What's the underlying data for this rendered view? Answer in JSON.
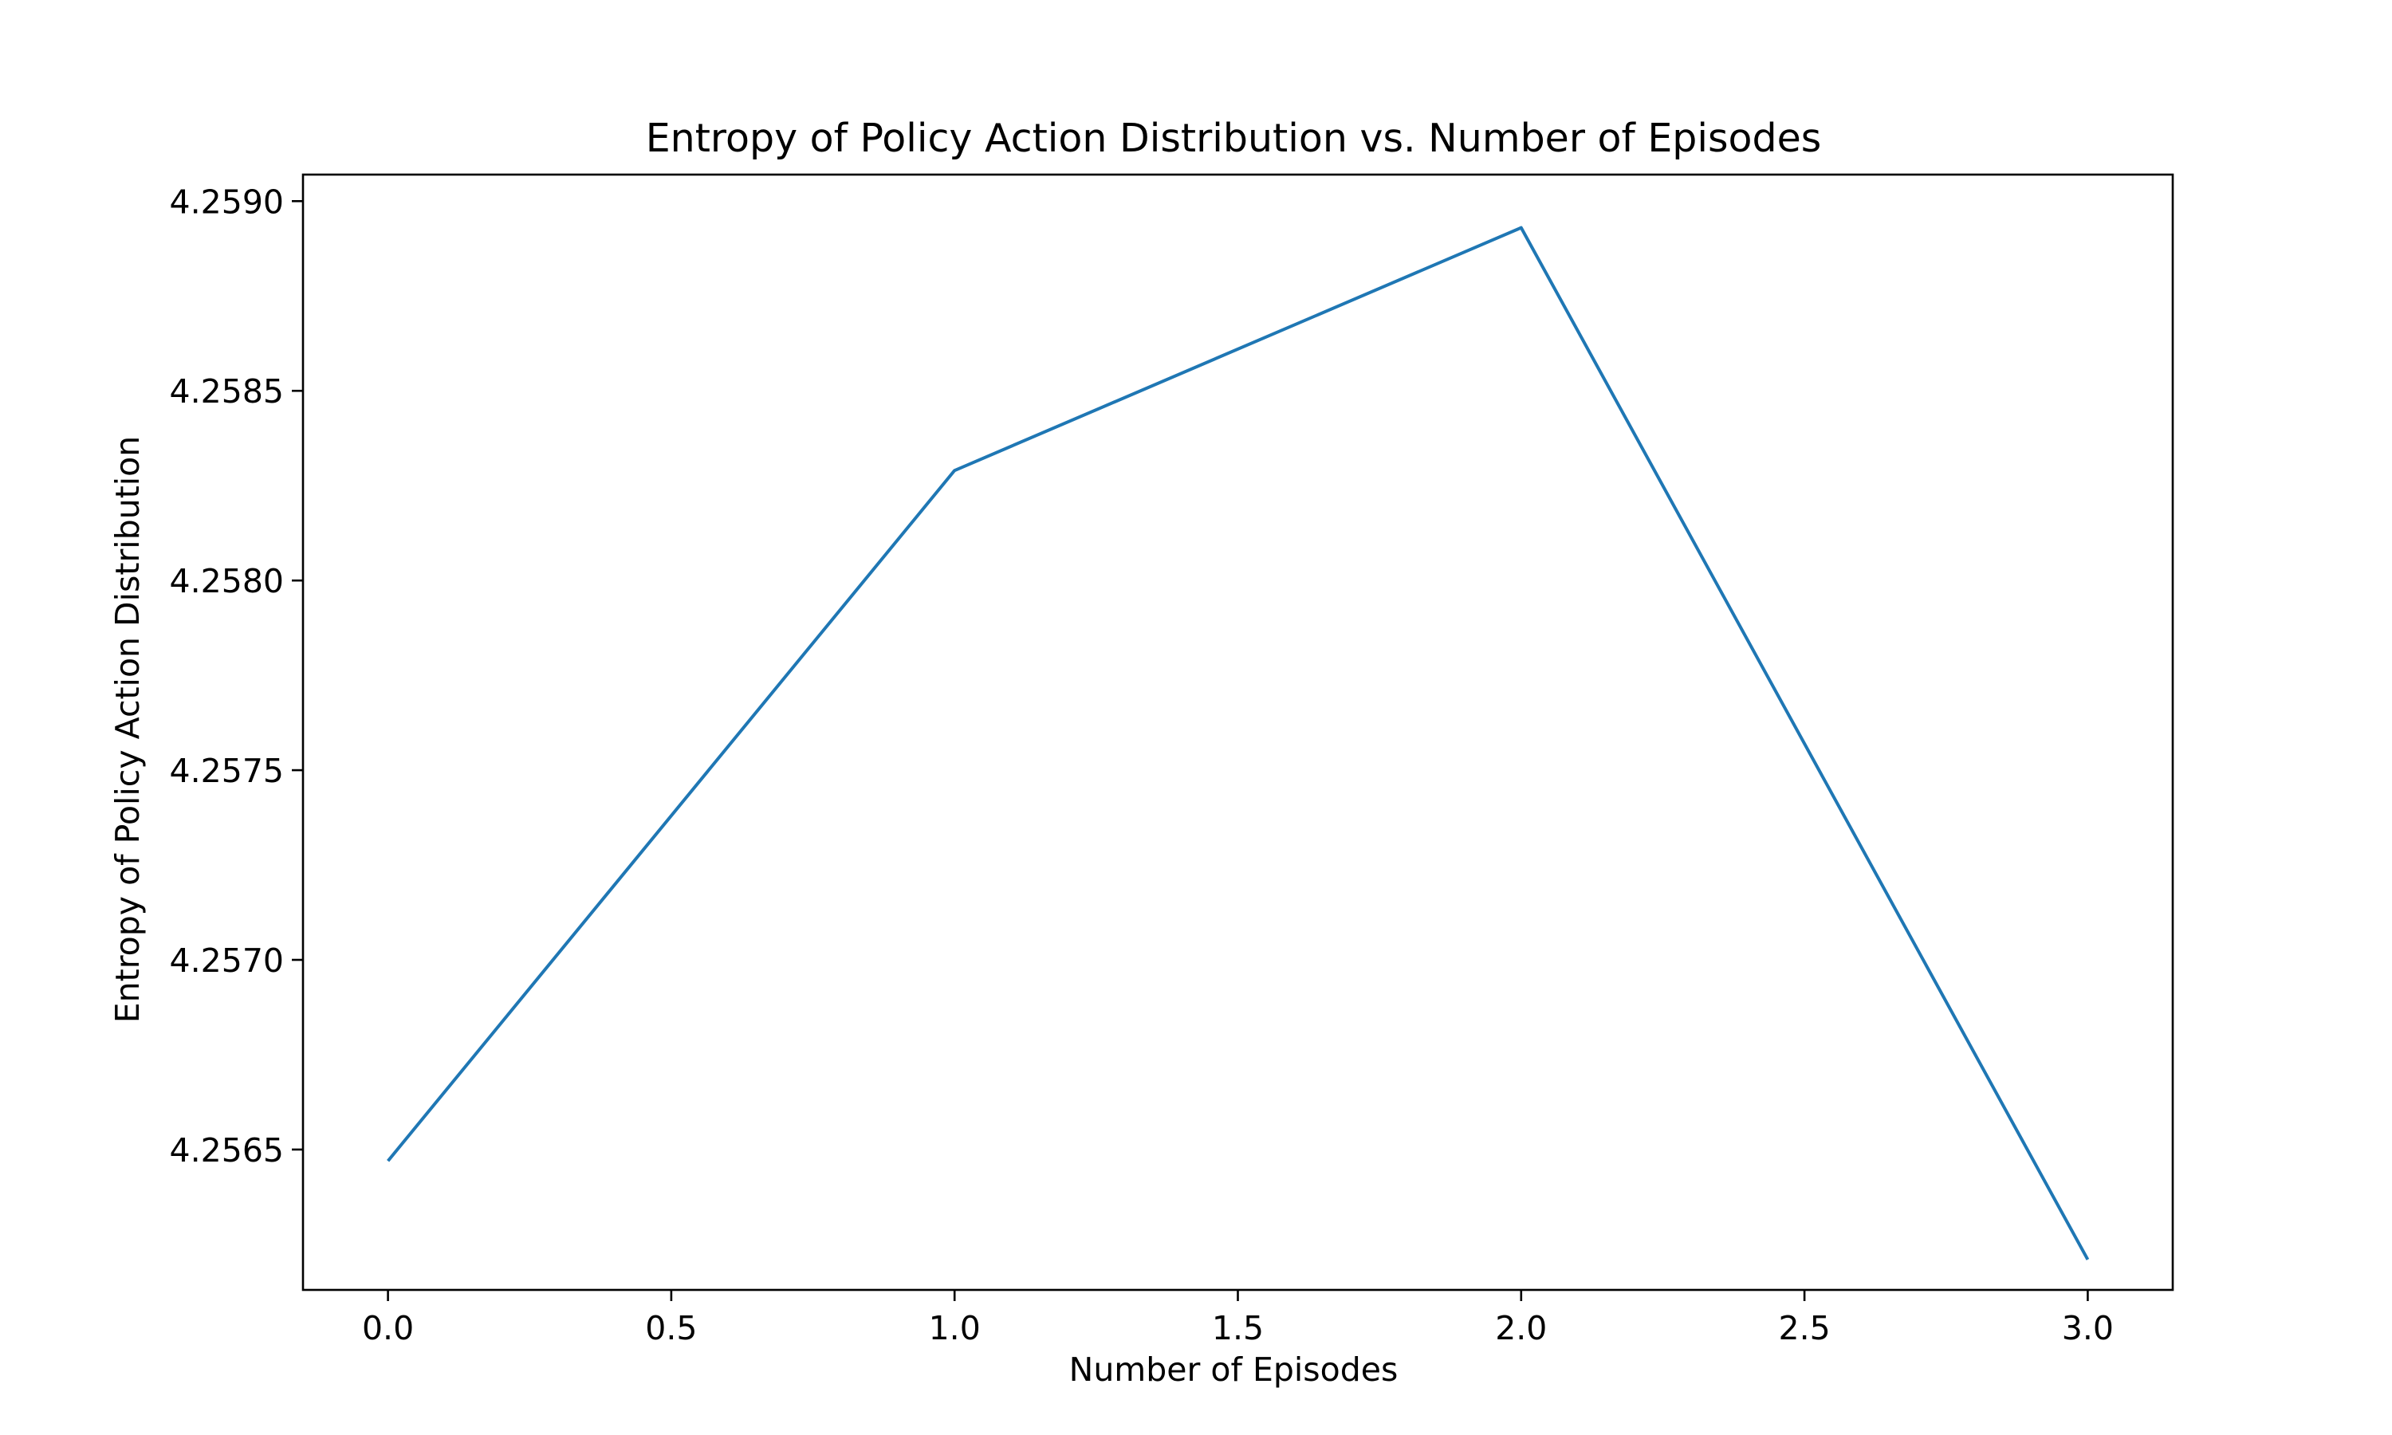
{
  "chart_data": {
    "type": "line",
    "title": "Entropy of Policy Action Distribution vs. Number of Episodes",
    "xlabel": "Number of Episodes",
    "ylabel": "Entropy of Policy Action Distribution",
    "xlim": [
      -0.15,
      3.15
    ],
    "ylim": [
      4.25613,
      4.25907
    ],
    "x_ticks": [
      0.0,
      0.5,
      1.0,
      1.5,
      2.0,
      2.5,
      3.0
    ],
    "x_tick_labels": [
      "0.0",
      "0.5",
      "1.0",
      "1.5",
      "2.0",
      "2.5",
      "3.0"
    ],
    "y_ticks": [
      4.2565,
      4.257,
      4.2575,
      4.258,
      4.2585,
      4.259
    ],
    "y_tick_labels": [
      "4.2565",
      "4.2570",
      "4.2575",
      "4.2580",
      "4.2585",
      "4.2590"
    ],
    "grid": false,
    "legend": "none",
    "series": [
      {
        "color": "#1f77b4",
        "x": [
          0,
          1,
          2,
          3
        ],
        "y": [
          4.25647,
          4.25829,
          4.25893,
          4.25621
        ]
      }
    ]
  }
}
